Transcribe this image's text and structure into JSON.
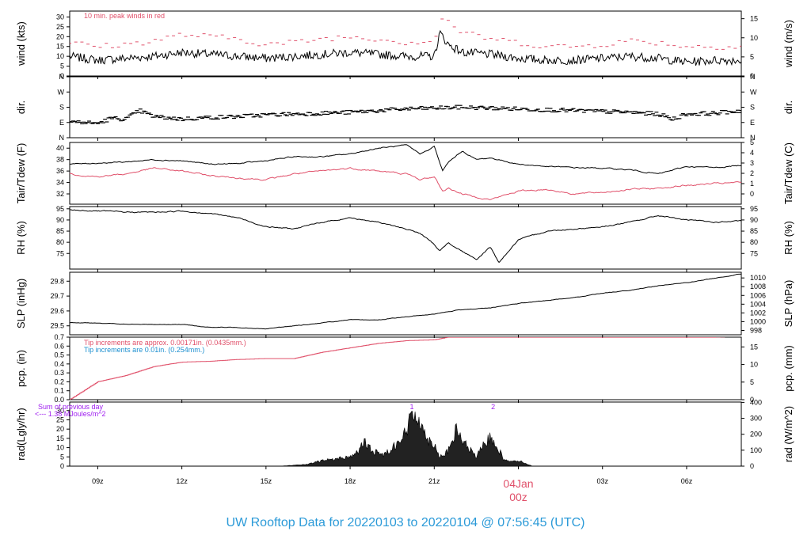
{
  "footer_title": "UW Rooftop Data for 20220103  to  20220104 @ 07:56:45  (UTC)",
  "colors": {
    "black": "#000000",
    "red": "#e0506a",
    "blue": "#1e90d0",
    "purple": "#a020f0",
    "footer": "#2b9ad8"
  },
  "time_axis": {
    "tick_labels": [
      "09z",
      "12z",
      "15z",
      "18z",
      "21z",
      "00z",
      "03z",
      "06z"
    ],
    "tick_hours": [
      9,
      12,
      15,
      18,
      21,
      24,
      27,
      30
    ],
    "range_hours": [
      8.0,
      31.95
    ],
    "date_label": "04Jan",
    "date_sublabel": "00z"
  },
  "chart_data": [
    {
      "type": "line",
      "id": "wind",
      "ylabel_left": "wind (kts)",
      "ylabel_right": "wind (m/s)",
      "ylim_left": [
        0,
        33
      ],
      "ylim_right": [
        0,
        17
      ],
      "ticks_left": [
        "0",
        "5",
        "10",
        "15",
        "20",
        "25",
        "30"
      ],
      "ticks_right": [
        "0",
        "5",
        "10",
        "15"
      ],
      "annotation": "10 min. peak winds in red",
      "series": [
        {
          "color": "#000000",
          "style": "noisy",
          "noise": 2.2,
          "x": [
            8,
            9,
            10,
            11,
            12,
            13,
            14,
            15,
            16,
            17,
            18,
            19,
            20,
            21,
            21.2,
            21.5,
            22,
            23,
            24,
            25,
            26,
            27,
            28,
            29,
            30,
            31,
            31.95
          ],
          "y": [
            10,
            8,
            9,
            10,
            12,
            11,
            10,
            9,
            10,
            11,
            12,
            11,
            10,
            10,
            22,
            16,
            12,
            11,
            9,
            8,
            8,
            9,
            10,
            9,
            7,
            8,
            8
          ]
        }
      ],
      "peaks": {
        "color": "#e0506a",
        "x": [
          8,
          9,
          10,
          11,
          12,
          13,
          14,
          15,
          16,
          17,
          18,
          19,
          20,
          21,
          21.3,
          22,
          23,
          24,
          25,
          26,
          27,
          28,
          29,
          30,
          31,
          31.9
        ],
        "y": [
          17,
          15,
          16,
          18,
          21,
          20,
          19,
          16,
          17,
          19,
          20,
          19,
          17,
          18,
          30,
          22,
          19,
          17,
          15,
          15,
          16,
          18,
          17,
          15,
          15,
          15
        ]
      }
    },
    {
      "type": "scatter",
      "id": "dir",
      "ylabel_left": "dir.",
      "ylabel_right": "dir.",
      "ylim_left": [
        0,
        360
      ],
      "ticks_left": [
        "N",
        "E",
        "S",
        "W",
        "N"
      ],
      "ticks_right": [
        "N",
        "E",
        "S",
        "W",
        "N"
      ],
      "series": [
        {
          "color": "#000000",
          "style": "dashes",
          "noise": 12,
          "x": [
            8,
            8.5,
            9,
            9.5,
            10,
            10.5,
            11,
            12,
            13,
            14,
            15,
            16,
            17,
            18,
            19,
            20,
            21,
            22,
            23,
            24,
            25,
            26,
            27,
            28,
            29,
            29.5,
            30,
            31,
            31.95
          ],
          "y": [
            95,
            90,
            85,
            115,
            110,
            160,
            125,
            110,
            120,
            125,
            135,
            140,
            145,
            150,
            160,
            170,
            175,
            180,
            175,
            170,
            165,
            160,
            155,
            150,
            140,
            110,
            140,
            145,
            160
          ]
        }
      ]
    },
    {
      "type": "line",
      "id": "temp",
      "ylabel_left": "Tair/Tdew (F)",
      "ylabel_right": "Tair/Tdew (C)",
      "ylim_left": [
        30.2,
        41.0
      ],
      "ylim_right": [
        -1,
        5
      ],
      "ticks_left": [
        "32",
        "34",
        "36",
        "38",
        "40"
      ],
      "ticks_right": [
        "0",
        "1",
        "2",
        "3",
        "4",
        "5"
      ],
      "series": [
        {
          "name": "Tair",
          "color": "#000000",
          "style": "smooth",
          "noise": 0.15,
          "x": [
            8,
            9,
            10,
            11,
            12,
            13,
            14,
            15,
            16,
            17,
            18,
            19,
            20,
            20.5,
            21,
            21.3,
            21.5,
            22,
            22.5,
            23,
            24,
            25,
            26,
            27,
            28,
            29,
            30,
            31,
            31.95
          ],
          "y": [
            37.2,
            37.4,
            37.6,
            38.0,
            37.8,
            37.2,
            37.3,
            37.8,
            38.5,
            38.5,
            39.0,
            40.0,
            40.5,
            39.0,
            40.3,
            36.0,
            37.5,
            39.5,
            38.0,
            38.3,
            37.2,
            36.8,
            36.6,
            36.5,
            36.2,
            35.5,
            36.8,
            36.6,
            37.0
          ]
        },
        {
          "name": "Tdew",
          "color": "#e0506a",
          "style": "smooth",
          "noise": 0.2,
          "x": [
            8,
            9,
            10,
            11,
            12,
            13,
            14,
            15,
            16,
            17,
            18,
            19,
            20,
            20.5,
            21,
            21.3,
            21.5,
            22,
            22.5,
            23,
            24,
            25,
            26,
            27,
            28,
            29,
            30,
            31,
            31.95
          ],
          "y": [
            35.5,
            35.0,
            35.5,
            36.5,
            36.0,
            35.2,
            34.8,
            34.5,
            35.5,
            36.0,
            36.5,
            36.0,
            35.5,
            34.5,
            35.0,
            32.5,
            33.0,
            32.0,
            31.5,
            31.0,
            32.5,
            32.8,
            32.0,
            32.3,
            32.8,
            33.0,
            33.5,
            33.8,
            34.0
          ]
        }
      ]
    },
    {
      "type": "line",
      "id": "rh",
      "ylabel_left": "RH (%)",
      "ylabel_right": "RH (%)",
      "ylim_left": [
        68,
        96
      ],
      "ylim_right": [
        68,
        96
      ],
      "ticks_left": [
        "75",
        "80",
        "85",
        "90",
        "95"
      ],
      "ticks_right": [
        "75",
        "80",
        "85",
        "90",
        "95"
      ],
      "series": [
        {
          "color": "#000000",
          "style": "smooth",
          "noise": 0.4,
          "x": [
            8,
            9,
            10,
            11,
            12,
            13,
            14,
            15,
            16,
            17,
            18,
            19,
            20,
            20.5,
            21,
            21.2,
            21.5,
            22,
            22.5,
            23,
            23.3,
            24,
            25,
            26,
            27,
            28,
            29,
            30,
            31,
            31.95
          ],
          "y": [
            94.5,
            94,
            93.5,
            93.5,
            94,
            93,
            91,
            87,
            86,
            89,
            91,
            89,
            86,
            84,
            79,
            76,
            80,
            76,
            72,
            78,
            71,
            81,
            85,
            86,
            87,
            89,
            92,
            90,
            89,
            89.5
          ]
        }
      ]
    },
    {
      "type": "line",
      "id": "slp",
      "ylabel_left": "SLP (inHg)",
      "ylabel_right": "SLP (hPa)",
      "ylim_left": [
        29.44,
        29.86
      ],
      "ylim_right": [
        997.0,
        1011.3
      ],
      "ticks_left": [
        "29.5",
        "29.6",
        "29.7",
        "29.8"
      ],
      "ticks_right": [
        "998",
        "1000",
        "1002",
        "1004",
        "1006",
        "1008",
        "1010"
      ],
      "series": [
        {
          "color": "#000000",
          "style": "smooth",
          "noise": 0.003,
          "x": [
            8,
            9,
            10,
            11,
            12,
            13,
            14,
            15,
            16,
            17,
            18,
            19,
            20,
            21,
            22,
            23,
            24,
            25,
            26,
            27,
            28,
            29,
            30,
            31,
            31.95
          ],
          "y": [
            29.52,
            29.52,
            29.51,
            29.51,
            29.51,
            29.49,
            29.49,
            29.48,
            29.5,
            29.52,
            29.54,
            29.54,
            29.56,
            29.58,
            29.61,
            29.62,
            29.65,
            29.67,
            29.69,
            29.72,
            29.74,
            29.77,
            29.79,
            29.82,
            29.85
          ]
        }
      ]
    },
    {
      "type": "area",
      "id": "pcp",
      "ylabel_left": "pcp. (in)",
      "ylabel_right": "pcp. (mm)",
      "ylim_left": [
        0,
        0.7
      ],
      "ylim_right": [
        0,
        17.78
      ],
      "ticks_left": [
        "0.0",
        "0.1",
        "0.2",
        "0.3",
        "0.4",
        "0.5",
        "0.6",
        "0.7"
      ],
      "ticks_right": [
        "0",
        "5",
        "10",
        "15"
      ],
      "notes": [
        {
          "text": "Tip increments are approx. 0.00171in. (0.0435mm.)",
          "color": "#e0506a"
        },
        {
          "text": "Tip increments are 0.01in. (0.254mm.)",
          "color": "#1e90d0"
        }
      ],
      "series": [
        {
          "color": "#e0506a",
          "style": "steps",
          "x": [
            8,
            9,
            10,
            11,
            12,
            13,
            14,
            15,
            16,
            17,
            18,
            19,
            20,
            21,
            21.5,
            22,
            23,
            24,
            25,
            26,
            27,
            28,
            29,
            30,
            31,
            31.95
          ],
          "y": [
            0,
            0.2,
            0.27,
            0.37,
            0.42,
            0.43,
            0.45,
            0.46,
            0.46,
            0.53,
            0.58,
            0.63,
            0.66,
            0.67,
            0.7,
            0.7,
            0.7,
            0.7,
            0.7,
            0.7,
            0.7,
            0.7,
            0.7,
            0.7,
            0.7,
            0.71
          ]
        }
      ]
    },
    {
      "type": "area",
      "id": "rad",
      "ylabel_left": "rad(Lgly/hr)",
      "ylabel_right": "rad (W/m^2)",
      "ylim_left": [
        0,
        34.6
      ],
      "ylim_right": [
        0,
        402
      ],
      "ticks_left": [
        "0",
        "5",
        "10",
        "15",
        "20",
        "25",
        "30"
      ],
      "ticks_right": [
        "0",
        "100",
        "200",
        "300",
        "400"
      ],
      "notes": [
        {
          "text": "Sum of previous day",
          "color": "#a020f0"
        },
        {
          "text": "<--- 1.38 MJoules/m^2",
          "color": "#a020f0"
        }
      ],
      "markers": [
        {
          "text": "1",
          "x": 20.2,
          "color": "#a020f0"
        },
        {
          "text": "2",
          "x": 23.1,
          "color": "#a020f0"
        }
      ],
      "series": [
        {
          "color": "#000000",
          "style": "spiky",
          "noise": 3.5,
          "x": [
            8,
            15.5,
            16,
            16.5,
            17,
            17.5,
            18,
            18.3,
            18.5,
            18.8,
            19,
            19.2,
            19.5,
            20,
            20.2,
            20.5,
            20.7,
            21,
            21.2,
            21.5,
            21.8,
            22,
            22.2,
            22.5,
            22.8,
            23,
            23.2,
            23.5,
            24,
            24.5,
            25,
            31.95
          ],
          "y": [
            0,
            0,
            0.5,
            1,
            3,
            4,
            5,
            8,
            13,
            8,
            7,
            6,
            10,
            18,
            28,
            26,
            15,
            12,
            5,
            8,
            20,
            14,
            10,
            5,
            12,
            16,
            12,
            3,
            3,
            0,
            0,
            0
          ]
        }
      ]
    }
  ]
}
